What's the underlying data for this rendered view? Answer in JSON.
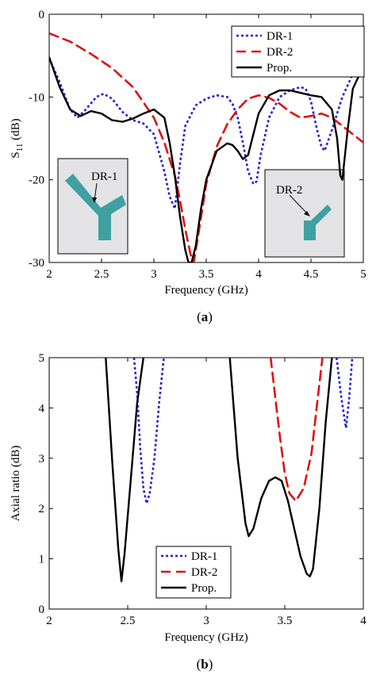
{
  "chart_data": [
    {
      "type": "line",
      "panel_label": "(a)",
      "panel_letter": "a",
      "xlabel": "Frequency (GHz)",
      "ylabel_main": "S",
      "ylabel_sub": "11",
      "ylabel_unit": " (dB)",
      "xlim": [
        2,
        5
      ],
      "ylim": [
        -30,
        0
      ],
      "xticks": [
        2,
        2.5,
        3,
        3.5,
        4,
        4.5,
        5
      ],
      "xtick_labels": [
        "2",
        "2.5",
        "3",
        "3.5",
        "4",
        "4.5",
        "5"
      ],
      "yticks": [
        -30,
        -20,
        -10,
        0
      ],
      "ytick_labels": [
        "-30",
        "-20",
        "-10",
        "0"
      ],
      "grid": false,
      "legend_position": "top-right",
      "series": [
        {
          "name": "DR-1",
          "color": "#1f1fdc",
          "style": "dotted",
          "x": [
            2.0,
            2.1,
            2.2,
            2.27,
            2.35,
            2.45,
            2.52,
            2.6,
            2.7,
            2.8,
            2.9,
            3.0,
            3.1,
            3.15,
            3.2,
            3.25,
            3.3,
            3.4,
            3.5,
            3.6,
            3.7,
            3.75,
            3.8,
            3.85,
            3.9,
            3.95,
            3.98,
            4.02,
            4.1,
            4.2,
            4.3,
            4.4,
            4.45,
            4.5,
            4.55,
            4.6,
            4.63,
            4.7,
            4.8,
            4.9,
            5.0
          ],
          "y": [
            -5.3,
            -8.2,
            -11.5,
            -12.5,
            -11.5,
            -10.0,
            -9.6,
            -10.2,
            -11.8,
            -12.8,
            -13.2,
            -14.5,
            -19.0,
            -22.0,
            -23.5,
            -18.0,
            -13.5,
            -11.0,
            -10.2,
            -9.8,
            -10.0,
            -10.8,
            -12.5,
            -15.5,
            -19.0,
            -20.5,
            -20.2,
            -17.0,
            -12.5,
            -10.0,
            -9.2,
            -8.8,
            -9.0,
            -10.5,
            -13.5,
            -16.0,
            -16.5,
            -14.0,
            -10.0,
            -7.2,
            -6.0
          ]
        },
        {
          "name": "DR-2",
          "color": "#e01010",
          "style": "dashed",
          "x": [
            2.0,
            2.2,
            2.4,
            2.6,
            2.8,
            3.0,
            3.1,
            3.2,
            3.25,
            3.3,
            3.35,
            3.38,
            3.42,
            3.5,
            3.6,
            3.7,
            3.8,
            3.9,
            4.0,
            4.1,
            4.2,
            4.3,
            4.4,
            4.5,
            4.6,
            4.7,
            4.8,
            4.9,
            5.0
          ],
          "y": [
            -2.3,
            -3.3,
            -4.8,
            -6.5,
            -8.8,
            -12.5,
            -15.5,
            -19.5,
            -22.5,
            -26.0,
            -29.0,
            -30.0,
            -27.0,
            -20.5,
            -16.0,
            -13.3,
            -11.5,
            -10.2,
            -9.8,
            -10.1,
            -10.8,
            -11.8,
            -12.5,
            -12.3,
            -12.0,
            -12.5,
            -13.5,
            -14.5,
            -15.5
          ]
        },
        {
          "name": "Prop.",
          "color": "#000000",
          "style": "solid",
          "x": [
            2.0,
            2.1,
            2.2,
            2.3,
            2.4,
            2.5,
            2.6,
            2.7,
            2.8,
            2.9,
            3.0,
            3.1,
            3.15,
            3.2,
            3.25,
            3.3,
            3.33,
            3.36,
            3.4,
            3.45,
            3.5,
            3.6,
            3.7,
            3.75,
            3.8,
            3.85,
            3.9,
            3.95,
            4.0,
            4.1,
            4.2,
            4.3,
            4.4,
            4.5,
            4.6,
            4.7,
            4.75,
            4.78,
            4.8,
            4.85,
            4.9,
            5.0
          ],
          "y": [
            -5.2,
            -8.8,
            -11.5,
            -12.3,
            -11.7,
            -12.0,
            -12.8,
            -13.0,
            -12.6,
            -12.0,
            -11.5,
            -12.5,
            -15.5,
            -19.5,
            -24.5,
            -28.5,
            -30.0,
            -30.0,
            -28.0,
            -23.5,
            -20.0,
            -16.5,
            -15.6,
            -15.8,
            -16.5,
            -17.5,
            -17.0,
            -14.5,
            -12.0,
            -9.8,
            -9.2,
            -9.2,
            -9.5,
            -9.8,
            -10.0,
            -11.5,
            -15.0,
            -19.5,
            -20.0,
            -14.0,
            -9.0,
            -6.3
          ]
        }
      ],
      "insets": [
        {
          "label": "DR-1",
          "fill": "#e3e3e5",
          "antenna_color": "#3f9fa1"
        },
        {
          "label": "DR-2",
          "fill": "#e3e3e5",
          "antenna_color": "#3f9fa1"
        }
      ]
    },
    {
      "type": "line",
      "panel_label": "(b)",
      "panel_letter": "b",
      "xlabel": "Frequency (GHz)",
      "ylabel": "Axial ratio (dB)",
      "xlim": [
        2,
        4
      ],
      "ylim": [
        0,
        5
      ],
      "xticks": [
        2,
        2.5,
        3,
        3.5,
        4
      ],
      "xtick_labels": [
        "2",
        "2.5",
        "3",
        "3.5",
        "4"
      ],
      "yticks": [
        0,
        1,
        2,
        3,
        4,
        5
      ],
      "ytick_labels": [
        "0",
        "1",
        "2",
        "3",
        "4",
        "5"
      ],
      "grid": false,
      "legend_position": "bottom-left",
      "series": [
        {
          "name": "DR-1",
          "color": "#1f1fdc",
          "style": "dotted",
          "x_segments": [
            [
              2.54,
              2.56,
              2.58,
              2.6,
              2.62,
              2.64,
              2.67,
              2.7,
              2.73
            ],
            [
              3.83,
              3.86,
              3.89,
              3.91,
              3.93
            ]
          ],
          "y_segments": [
            [
              5.0,
              4.3,
              3.2,
              2.4,
              2.1,
              2.3,
              3.0,
              4.1,
              5.0
            ],
            [
              5.0,
              4.2,
              3.6,
              4.2,
              5.0
            ]
          ]
        },
        {
          "name": "DR-2",
          "color": "#e01010",
          "style": "dashed",
          "x_segments": [
            [
              3.41,
              3.44,
              3.47,
              3.5,
              3.53,
              3.57,
              3.62,
              3.67,
              3.71,
              3.74
            ]
          ],
          "y_segments": [
            [
              5.0,
              4.2,
              3.4,
              2.7,
              2.3,
              2.15,
              2.4,
              3.1,
              4.2,
              5.0
            ]
          ]
        },
        {
          "name": "Prop.",
          "color": "#000000",
          "style": "solid",
          "x_segments": [
            [
              2.36,
              2.4,
              2.44,
              2.46,
              2.48,
              2.52,
              2.56,
              2.6
            ],
            [
              3.15,
              3.2,
              3.25,
              3.27,
              3.3,
              3.35,
              3.4,
              3.44,
              3.48,
              3.52,
              3.56,
              3.6,
              3.64,
              3.66,
              3.68,
              3.72,
              3.76,
              3.8
            ]
          ],
          "y_segments": [
            [
              5.0,
              3.0,
              1.2,
              0.55,
              1.1,
              2.6,
              4.1,
              5.0
            ],
            [
              5.0,
              3.0,
              1.7,
              1.45,
              1.6,
              2.2,
              2.55,
              2.62,
              2.55,
              2.15,
              1.6,
              1.05,
              0.7,
              0.65,
              0.8,
              2.0,
              3.7,
              5.0
            ]
          ]
        }
      ]
    }
  ]
}
